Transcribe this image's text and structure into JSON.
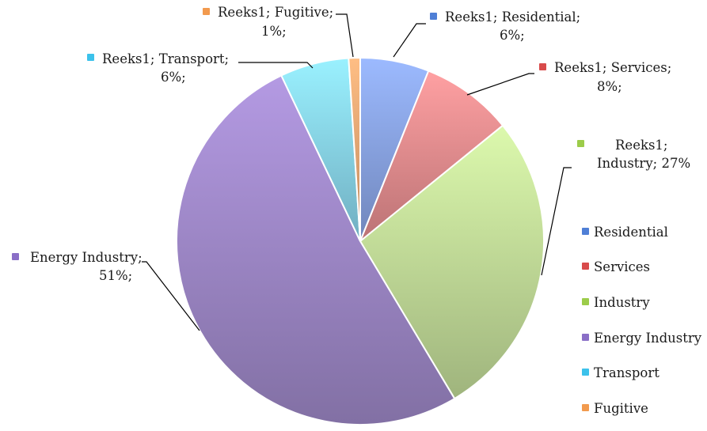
{
  "chart_data": {
    "type": "pie",
    "title": "",
    "categories": [
      "Residential",
      "Services",
      "Industry",
      "Energy Industry",
      "Transport",
      "Fugitive"
    ],
    "values": [
      6,
      8,
      27,
      51,
      6,
      1
    ],
    "colors": [
      "#90acf0",
      "#f09496",
      "#cce7a0",
      "#a78fd2",
      "#8fdff8",
      "#f5b07a"
    ],
    "data_labels": [
      [
        "Reeks1; Residential;",
        "6%;"
      ],
      [
        "Reeks1; Services;",
        "8%;"
      ],
      [
        "Reeks1;",
        "Industry; 27%"
      ],
      [
        "Energy Industry;",
        "51%;"
      ],
      [
        "Reeks1; Transport;",
        "6%;"
      ],
      [
        "Reeks1; Fugitive;",
        "1%;"
      ]
    ],
    "legend": {
      "position": "right",
      "entries": [
        "Residential",
        "Services",
        "Industry",
        "Energy Industry",
        "Transport",
        "Fugitive"
      ]
    }
  }
}
